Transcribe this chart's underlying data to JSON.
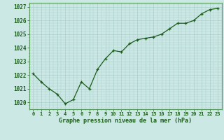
{
  "x": [
    0,
    1,
    2,
    3,
    4,
    5,
    6,
    7,
    8,
    9,
    10,
    11,
    12,
    13,
    14,
    15,
    16,
    17,
    18,
    19,
    20,
    21,
    22,
    23
  ],
  "y": [
    1022.1,
    1021.5,
    1021.0,
    1020.6,
    1019.9,
    1020.2,
    1021.5,
    1021.0,
    1022.4,
    1023.2,
    1023.8,
    1023.7,
    1024.3,
    1024.6,
    1024.7,
    1024.8,
    1025.0,
    1025.4,
    1025.8,
    1025.8,
    1026.0,
    1026.5,
    1026.8,
    1026.9
  ],
  "line_color": "#1a5c1a",
  "marker": "+",
  "marker_color": "#1a5c1a",
  "bg_color": "#cce8e4",
  "grid_major_color": "#aacfcc",
  "grid_minor_color": "#aacfcc",
  "xlabel": "Graphe pression niveau de la mer (hPa)",
  "xlabel_color": "#1a5c1a",
  "tick_color": "#1a5c1a",
  "axis_color": "#5a9a5a",
  "ylim_min": 1019.5,
  "ylim_max": 1027.3,
  "yticks": [
    1020,
    1021,
    1022,
    1023,
    1024,
    1025,
    1026,
    1027
  ],
  "xticks": [
    0,
    1,
    2,
    3,
    4,
    5,
    6,
    7,
    8,
    9,
    10,
    11,
    12,
    13,
    14,
    15,
    16,
    17,
    18,
    19,
    20,
    21,
    22,
    23
  ]
}
